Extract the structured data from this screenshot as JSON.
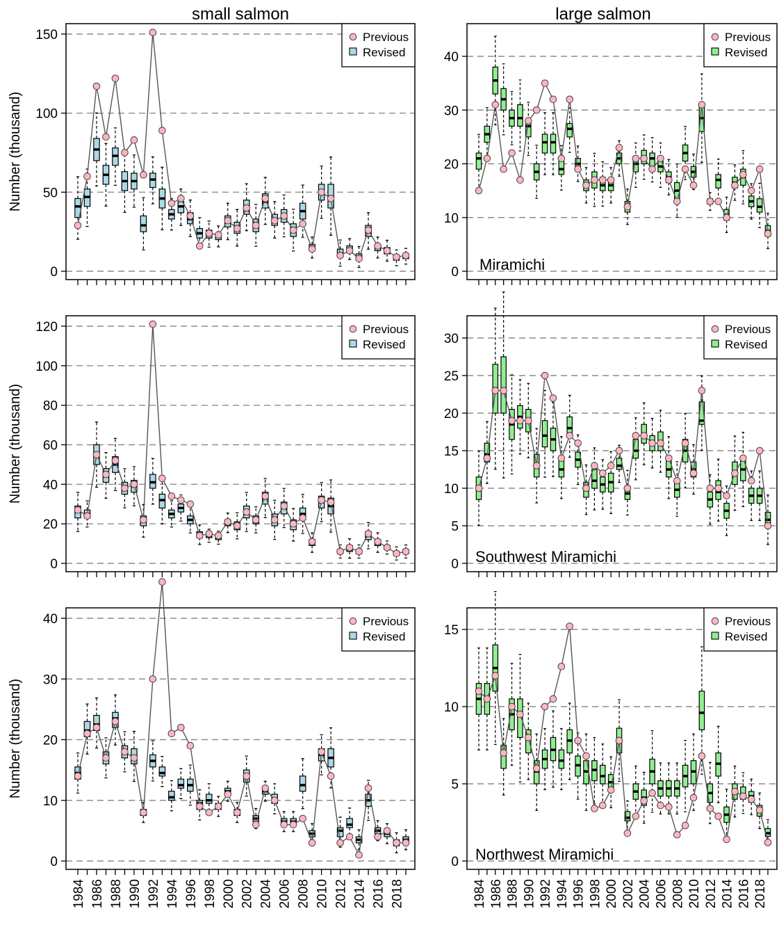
{
  "col_titles": [
    "small salmon",
    "large salmon"
  ],
  "ylabel": "Number (thousand)",
  "legend": {
    "previous": "Previous",
    "revised": "Revised"
  },
  "colors": {
    "small_box": "#add8e6",
    "large_box": "#90ee90",
    "previous_point": "#ffb6c1"
  },
  "years": [
    1984,
    1985,
    1986,
    1987,
    1988,
    1989,
    1990,
    1991,
    1992,
    1993,
    1994,
    1995,
    1996,
    1997,
    1998,
    1999,
    2000,
    2001,
    2002,
    2003,
    2004,
    2005,
    2006,
    2007,
    2008,
    2009,
    2010,
    2011,
    2012,
    2013,
    2014,
    2015,
    2016,
    2017,
    2018,
    2019
  ],
  "chart_data": [
    {
      "type": "box+line",
      "panel": "small salmon",
      "region": "",
      "ylim": [
        0,
        150
      ],
      "yticks": [
        0,
        50,
        100,
        150
      ],
      "revised": [
        [
          34,
          41,
          46
        ],
        [
          41,
          47,
          52
        ],
        [
          70,
          77,
          84
        ],
        [
          55,
          61,
          67
        ],
        [
          67,
          73,
          78
        ],
        [
          51,
          57,
          63
        ],
        [
          52,
          57,
          62
        ],
        [
          25,
          29,
          35
        ],
        [
          53,
          58,
          62
        ],
        [
          40,
          46,
          52
        ],
        [
          33,
          36,
          39
        ],
        [
          37,
          41,
          44
        ],
        [
          30,
          33,
          37
        ],
        [
          21,
          24,
          27
        ],
        [
          21,
          24,
          26
        ],
        [
          20,
          22,
          24
        ],
        [
          28,
          32,
          35
        ],
        [
          24,
          27,
          31
        ],
        [
          36,
          41,
          45
        ],
        [
          25,
          29,
          33
        ],
        [
          40,
          44,
          49
        ],
        [
          29,
          32,
          36
        ],
        [
          31,
          35,
          39
        ],
        [
          22,
          25,
          30
        ],
        [
          33,
          38,
          43
        ],
        [
          13,
          15,
          17
        ],
        [
          45,
          50,
          55
        ],
        [
          40,
          47,
          55
        ],
        [
          9,
          11,
          14
        ],
        [
          12,
          14,
          16
        ],
        [
          7,
          9,
          11
        ],
        [
          22,
          26,
          29
        ],
        [
          13,
          15,
          17
        ],
        [
          11,
          13,
          15
        ],
        [
          7,
          8,
          10
        ],
        [
          8,
          9,
          11
        ]
      ],
      "previous": [
        29,
        60,
        117,
        85,
        122,
        75,
        83,
        61,
        151,
        89,
        43,
        46,
        35,
        16,
        24,
        23,
        32,
        27,
        40,
        29,
        46,
        32,
        35,
        26,
        30,
        14,
        50,
        46,
        10,
        13,
        8,
        26,
        16,
        13,
        9,
        10
      ]
    },
    {
      "type": "box+line",
      "panel": "large salmon",
      "region": "Miramichi",
      "ylim": [
        0,
        40
      ],
      "yticks": [
        0,
        10,
        20,
        30,
        40
      ],
      "revised": [
        [
          19,
          21,
          22
        ],
        [
          24,
          25.5,
          27
        ],
        [
          33,
          35.5,
          38
        ],
        [
          30,
          32,
          34
        ],
        [
          27,
          28.5,
          30
        ],
        [
          27,
          28.5,
          31
        ],
        [
          25,
          27,
          28
        ],
        [
          17,
          18.5,
          20
        ],
        [
          22,
          24,
          25.5
        ],
        [
          22,
          24,
          25.5
        ],
        [
          18,
          19,
          20.5
        ],
        [
          25,
          26.5,
          27.5
        ],
        [
          19,
          20,
          21
        ],
        [
          15,
          16,
          17
        ],
        [
          15.5,
          17,
          18.5
        ],
        [
          15,
          16,
          17.5
        ],
        [
          15,
          16,
          17
        ],
        [
          20,
          21,
          22
        ],
        [
          11,
          12,
          13
        ],
        [
          18.5,
          20,
          21
        ],
        [
          20,
          21,
          22.5
        ],
        [
          19.5,
          21,
          22
        ],
        [
          18.5,
          19.5,
          21
        ],
        [
          16.5,
          17.5,
          18.5
        ],
        [
          13.5,
          15,
          16.5
        ],
        [
          20.5,
          22,
          23.5
        ],
        [
          17.5,
          18.5,
          19.5
        ],
        [
          26,
          28.5,
          31
        ],
        [
          12.5,
          13,
          13.5
        ],
        [
          15.5,
          17,
          18
        ],
        [
          9.5,
          10.5,
          11.5
        ],
        [
          15.5,
          16.5,
          17.5
        ],
        [
          16,
          17.5,
          19
        ],
        [
          12,
          13,
          14
        ],
        [
          11,
          12,
          13.5
        ],
        [
          6.5,
          7.5,
          8.5
        ]
      ],
      "previous": [
        15,
        21,
        31,
        19,
        22,
        17,
        28,
        30,
        35,
        32,
        21,
        32,
        19,
        16,
        17,
        17,
        17,
        23,
        12,
        21,
        21,
        19,
        21,
        17,
        13,
        19,
        16,
        31,
        13,
        13,
        10,
        16,
        18,
        15,
        19,
        7
      ]
    },
    {
      "type": "box+line",
      "panel": "small salmon",
      "region": "",
      "ylim": [
        0,
        120
      ],
      "yticks": [
        0,
        20,
        40,
        60,
        80,
        100,
        120
      ],
      "revised": [
        [
          23,
          26,
          29
        ],
        [
          23,
          25,
          27
        ],
        [
          50,
          55,
          60
        ],
        [
          41,
          44,
          48
        ],
        [
          46,
          50,
          54
        ],
        [
          35,
          38,
          41
        ],
        [
          36,
          39,
          42
        ],
        [
          19,
          22,
          24
        ],
        [
          38,
          41,
          45
        ],
        [
          28,
          32,
          35
        ],
        [
          23,
          25,
          27
        ],
        [
          26,
          28,
          30
        ],
        [
          20,
          22,
          24
        ],
        [
          13,
          15,
          16
        ],
        [
          13,
          14,
          15
        ],
        [
          12,
          13,
          14
        ],
        [
          19,
          20,
          22
        ],
        [
          17,
          19,
          21
        ],
        [
          23,
          26,
          29
        ],
        [
          20,
          22,
          24
        ],
        [
          30,
          33,
          36
        ],
        [
          19,
          22,
          25
        ],
        [
          25,
          28,
          31
        ],
        [
          17,
          20,
          22
        ],
        [
          22,
          25,
          28
        ],
        [
          9,
          11,
          12
        ],
        [
          28,
          31,
          34
        ],
        [
          25,
          29,
          33
        ],
        [
          5,
          6,
          7
        ],
        [
          6,
          7,
          9
        ],
        [
          5,
          6,
          7
        ],
        [
          12,
          14,
          16
        ],
        [
          9,
          10,
          12
        ],
        [
          7,
          8,
          9
        ],
        [
          4,
          5,
          6
        ],
        [
          5,
          6,
          7
        ]
      ],
      "previous": [
        27,
        24,
        55,
        45,
        52,
        38,
        40,
        22,
        121,
        43,
        34,
        32,
        30,
        14,
        15,
        14,
        21,
        19,
        26,
        22,
        34,
        22,
        29,
        20,
        23,
        11,
        32,
        31,
        6,
        8,
        6,
        15,
        11,
        8,
        5,
        6
      ]
    },
    {
      "type": "box+line",
      "panel": "large salmon",
      "region": "Southwest Miramichi",
      "ylim": [
        0,
        30
      ],
      "yticks": [
        0,
        5,
        10,
        15,
        20,
        25,
        30
      ],
      "revised": [
        [
          8.5,
          9.8,
          11.5
        ],
        [
          13.5,
          14.5,
          16
        ],
        [
          20,
          23.3,
          26.5
        ],
        [
          20,
          23,
          27.5
        ],
        [
          16.5,
          18.5,
          20.5
        ],
        [
          18,
          19.5,
          21
        ],
        [
          17.5,
          19,
          20.5
        ],
        [
          11.5,
          13,
          14.5
        ],
        [
          15.5,
          17,
          19
        ],
        [
          15,
          16.5,
          18
        ],
        [
          11.5,
          12.5,
          14
        ],
        [
          17,
          18,
          19.5
        ],
        [
          12.8,
          13.8,
          14.8
        ],
        [
          8.8,
          9.8,
          10.8
        ],
        [
          10,
          11,
          12.5
        ],
        [
          9.5,
          10.5,
          11.5
        ],
        [
          9.5,
          10.8,
          12
        ],
        [
          12.5,
          13,
          14
        ],
        [
          8.5,
          9.3,
          10.3
        ],
        [
          14,
          15,
          16.5
        ],
        [
          16,
          17,
          18.5
        ],
        [
          15,
          16,
          17
        ],
        [
          15,
          16,
          17.5
        ],
        [
          11.5,
          12.5,
          14
        ],
        [
          8.8,
          9.8,
          11
        ],
        [
          13.5,
          15,
          16.5
        ],
        [
          11.5,
          12.5,
          13.5
        ],
        [
          18.5,
          19,
          21.5
        ],
        [
          7.5,
          8.5,
          9.5
        ],
        [
          8.5,
          9.5,
          11
        ],
        [
          6,
          7,
          8
        ],
        [
          10.5,
          12,
          13.5
        ],
        [
          11,
          12.5,
          14
        ],
        [
          8,
          9,
          10
        ],
        [
          8,
          9,
          10
        ],
        [
          4.8,
          5.8,
          6.8
        ]
      ],
      "previous": [
        10,
        14,
        23,
        23,
        19,
        19,
        19,
        13,
        25,
        22,
        14,
        17,
        16,
        10,
        13,
        12,
        13,
        15,
        10,
        17,
        17,
        16,
        16,
        14,
        11,
        16,
        12,
        23,
        10,
        10,
        9,
        12,
        14,
        11,
        15,
        5
      ]
    },
    {
      "type": "box+line",
      "panel": "small salmon",
      "region": "",
      "ylim": [
        0,
        45
      ],
      "yticks": [
        0,
        10,
        20,
        30,
        40
      ],
      "revised": [
        [
          13.5,
          14.5,
          15.5
        ],
        [
          20.5,
          21.5,
          23
        ],
        [
          21.5,
          22.5,
          24
        ],
        [
          16,
          17,
          18
        ],
        [
          22,
          23.5,
          24.5
        ],
        [
          17,
          18,
          19
        ],
        [
          16,
          17,
          18.5
        ],
        [
          7.5,
          8,
          8.5
        ],
        [
          15.5,
          16.5,
          17.5
        ],
        [
          14,
          14.5,
          15.5
        ],
        [
          10,
          10.5,
          11.5
        ],
        [
          12,
          12.5,
          13.5
        ],
        [
          11.5,
          12.5,
          13.5
        ],
        [
          8.5,
          9.5,
          10
        ],
        [
          9.5,
          10,
          11
        ],
        [
          8.5,
          9,
          9.5
        ],
        [
          11,
          11.5,
          12
        ],
        [
          7.5,
          8,
          8.5
        ],
        [
          13,
          14,
          15
        ],
        [
          6.5,
          7,
          7.5
        ],
        [
          11,
          11.5,
          12
        ],
        [
          9.5,
          10,
          11
        ],
        [
          6,
          6.5,
          7
        ],
        [
          6,
          6.5,
          7
        ],
        [
          11.5,
          12.5,
          14
        ],
        [
          4,
          4.5,
          5
        ],
        [
          16.5,
          17.5,
          18.5
        ],
        [
          15.5,
          17,
          18.5
        ],
        [
          4,
          5,
          5.5
        ],
        [
          5.5,
          6,
          7
        ],
        [
          3,
          3.5,
          4
        ],
        [
          9,
          10,
          11
        ],
        [
          4.5,
          5,
          5.5
        ],
        [
          4,
          4.5,
          5
        ],
        [
          2.5,
          3,
          3.5
        ],
        [
          3,
          3.5,
          4
        ]
      ],
      "previous": [
        14,
        21,
        22,
        17,
        23,
        18,
        17,
        8,
        30,
        46,
        21,
        22,
        19,
        9,
        8,
        9,
        11,
        8,
        14,
        6,
        12,
        10,
        6,
        6,
        7,
        3,
        18,
        14,
        3,
        4,
        1,
        12,
        4,
        5,
        3,
        3
      ]
    },
    {
      "type": "box+line",
      "panel": "large salmon",
      "region": "Northwest Miramichi",
      "ylim": [
        0,
        15
      ],
      "yticks": [
        0,
        5,
        10,
        15
      ],
      "revised": [
        [
          9.5,
          10.5,
          11.5
        ],
        [
          9.5,
          10.5,
          11.5
        ],
        [
          11,
          12.5,
          14
        ],
        [
          6,
          7,
          7.5
        ],
        [
          8.5,
          9.5,
          10.5
        ],
        [
          8,
          9.5,
          10.5
        ],
        [
          7,
          8,
          8.5
        ],
        [
          5,
          5.8,
          6.5
        ],
        [
          6,
          6.6,
          7.2
        ],
        [
          6.5,
          7.2,
          8
        ],
        [
          6,
          6.5,
          7.2
        ],
        [
          7,
          7.8,
          8.5
        ],
        [
          5.5,
          6.2,
          6.8
        ],
        [
          5,
          5.8,
          6.5
        ],
        [
          5.2,
          5.9,
          6.5
        ],
        [
          5,
          5.5,
          6.2
        ],
        [
          4.6,
          5.1,
          5.6
        ],
        [
          7,
          7.7,
          8.6
        ],
        [
          2.6,
          2.8,
          3.2
        ],
        [
          4,
          4.5,
          5
        ],
        [
          3.6,
          4.1,
          4.6
        ],
        [
          5,
          5.8,
          6.6
        ],
        [
          4.2,
          4.7,
          5.2
        ],
        [
          4.2,
          4.7,
          5.2
        ],
        [
          4.2,
          4.7,
          5.2
        ],
        [
          4.8,
          5.5,
          6.2
        ],
        [
          5,
          5.8,
          6.5
        ],
        [
          8.5,
          9.6,
          11
        ],
        [
          3.8,
          4.4,
          5
        ],
        [
          5.5,
          6.3,
          7
        ],
        [
          2.5,
          3,
          3.5
        ],
        [
          4,
          4.4,
          5
        ],
        [
          4,
          4.3,
          4.8
        ],
        [
          3.8,
          4.2,
          4.5
        ],
        [
          2.9,
          3.2,
          3.6
        ],
        [
          1.6,
          1.8,
          2.1
        ]
      ],
      "previous": [
        11,
        10.5,
        12,
        7,
        10,
        9.5,
        8,
        6,
        10,
        10.5,
        12.6,
        15.2,
        7.8,
        6.8,
        3.4,
        3.6,
        4.6,
        7.8,
        1.8,
        2.9,
        3.9,
        4.4,
        3.6,
        3.5,
        1.7,
        2.3,
        4.1,
        6.8,
        3.4,
        2.9,
        1.4,
        4.5,
        4.2,
        4.0,
        3.3,
        1.2
      ]
    }
  ]
}
